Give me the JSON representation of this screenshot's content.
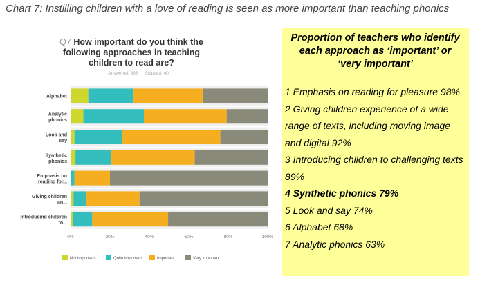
{
  "caption": "Chart 7: Instilling children with a love of reading is seen as more important than teaching phonics",
  "chart_data": {
    "type": "bar",
    "orientation": "horizontal-stacked-100",
    "question_number": "Q7",
    "title": "How important do you think the following approaches in teaching children to read are?",
    "answered": "Answered: 466",
    "skipped": "Skipped: 40",
    "categories": [
      "Alphabet",
      "Analytic phonics",
      "Look and say",
      "Synthetic phonics",
      "Emphasis on reading for...",
      "Giving children an...",
      "Introducing children to..."
    ],
    "series": [
      {
        "name": "Not important",
        "color": "#cfd62e",
        "values": [
          9,
          6.5,
          2,
          2.5,
          0,
          1.5,
          1
        ]
      },
      {
        "name": "Quite important",
        "color": "#33bdbd",
        "values": [
          23,
          30.7,
          24,
          18,
          2,
          6.5,
          10
        ]
      },
      {
        "name": "Important",
        "color": "#f5ae1f",
        "values": [
          35,
          42,
          50,
          42.5,
          18,
          27,
          38.5
        ]
      },
      {
        "name": "Very important",
        "color": "#8a8a7a",
        "values": [
          33,
          20.8,
          24,
          37,
          80,
          65,
          50.5
        ]
      }
    ],
    "xticks": [
      "0%",
      "20%",
      "40%",
      "60%",
      "80%",
      "100%"
    ],
    "xlim": [
      0,
      100
    ],
    "legend": "bottom"
  },
  "panel": {
    "heading": "Proportion of teachers who identify each approach  as ‘important’ or ‘very important’",
    "items": [
      {
        "text": "1 Emphasis on reading for pleasure 98%",
        "bold": false
      },
      {
        "text": "2 Giving children experience of a wide range of texts, including moving image and digital 92%",
        "bold": false
      },
      {
        "text": "3 Introducing children to challenging texts 89%",
        "bold": false
      },
      {
        "text": "4 Synthetic phonics 79%",
        "bold": true
      },
      {
        "text": "5 Look and say 74%",
        "bold": false
      },
      {
        "text": "6 Alphabet 68%",
        "bold": false
      },
      {
        "text": "7 Analytic phonics 63%",
        "bold": false
      }
    ]
  }
}
